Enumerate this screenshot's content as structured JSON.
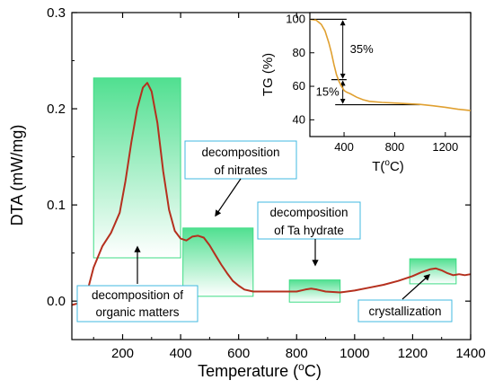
{
  "chart_data": [
    {
      "type": "line",
      "xlabel": "Temperature (",
      "xlabel_sup": "o",
      "xlabel_suffix": "C)",
      "ylabel": "DTA (mW/mg)",
      "xlim": [
        25,
        1400
      ],
      "ylim": [
        -0.04,
        0.3
      ],
      "xticks": [
        200,
        400,
        600,
        800,
        1000,
        1200,
        1400
      ],
      "yticks": [
        0.0,
        0.1,
        0.2,
        0.3
      ],
      "xtick_labels": [
        "200",
        "400",
        "600",
        "800",
        "1000",
        "1200",
        "1400"
      ],
      "ytick_labels": [
        "0.0",
        "0.1",
        "0.2",
        "0.3"
      ],
      "grid": false,
      "line_color": "#b5301e",
      "series": [
        {
          "x": [
            25,
            50,
            80,
            100,
            130,
            160,
            190,
            210,
            230,
            250,
            270,
            285,
            300,
            320,
            340,
            360,
            380,
            400,
            420,
            440,
            460,
            480,
            500,
            520,
            540,
            560,
            580,
            600,
            620,
            650,
            700,
            750,
            800,
            830,
            850,
            870,
            900,
            950,
            1000,
            1050,
            1100,
            1150,
            1200,
            1230,
            1260,
            1280,
            1300,
            1320,
            1340,
            1360,
            1380,
            1400
          ],
          "y": [
            -0.004,
            -0.002,
            0.012,
            0.035,
            0.057,
            0.071,
            0.092,
            0.125,
            0.165,
            0.2,
            0.222,
            0.227,
            0.218,
            0.185,
            0.135,
            0.095,
            0.073,
            0.065,
            0.063,
            0.067,
            0.068,
            0.066,
            0.058,
            0.048,
            0.038,
            0.029,
            0.021,
            0.016,
            0.012,
            0.01,
            0.01,
            0.01,
            0.01,
            0.012,
            0.013,
            0.012,
            0.01,
            0.009,
            0.011,
            0.014,
            0.017,
            0.021,
            0.026,
            0.03,
            0.033,
            0.034,
            0.032,
            0.029,
            0.027,
            0.028,
            0.027,
            0.028
          ]
        }
      ],
      "regions": [
        {
          "x": [
            100,
            400
          ],
          "y": [
            0.045,
            0.232
          ],
          "label": "decomposition of organic matters"
        },
        {
          "x": [
            408,
            650
          ],
          "y": [
            0.005,
            0.076
          ],
          "label": "decomposition of nitrates"
        },
        {
          "x": [
            775,
            950
          ],
          "y": [
            -0.001,
            0.022
          ],
          "label": "decomposition of Ta hydrate"
        },
        {
          "x": [
            1190,
            1350
          ],
          "y": [
            0.018,
            0.044
          ],
          "label": "crystallization"
        }
      ],
      "region_color": "#3ddc84",
      "box_color": "#40b8e0",
      "annotations": [
        {
          "lines": [
            "decomposition of",
            "organic matters"
          ]
        },
        {
          "lines": [
            "decomposition",
            "of nitrates"
          ]
        },
        {
          "lines": [
            "decomposition",
            "of Ta hydrate"
          ]
        },
        {
          "lines": [
            "crystallization"
          ]
        }
      ]
    },
    {
      "type": "line",
      "inset": true,
      "xlabel": "T(",
      "xlabel_sup": "o",
      "xlabel_suffix": "C)",
      "ylabel": "TG (%)",
      "xlim": [
        130,
        1400
      ],
      "ylim": [
        30,
        104
      ],
      "xticks": [
        400,
        800,
        1200
      ],
      "yticks": [
        40,
        60,
        80,
        100
      ],
      "xtick_labels": [
        "400",
        "800",
        "1200"
      ],
      "ytick_labels": [
        "40",
        "60",
        "80",
        "100"
      ],
      "line_color": "#e0a030",
      "series": [
        {
          "x": [
            130,
            180,
            220,
            250,
            280,
            300,
            320,
            340,
            360,
            380,
            400,
            420,
            450,
            500,
            550,
            600,
            700,
            800,
            900,
            1000,
            1100,
            1200,
            1300,
            1400
          ],
          "y": [
            100,
            99.5,
            97,
            93,
            86,
            80,
            73,
            67,
            63,
            60,
            57.5,
            56.5,
            55.5,
            53.5,
            52,
            51,
            50.4,
            50,
            49.6,
            49.2,
            48.4,
            47.5,
            46.3,
            45.5
          ]
        }
      ],
      "reference_lines": [
        100,
        64,
        49
      ],
      "reference_x": [
        130,
        1000
      ],
      "annotations": [
        "35%",
        "15%"
      ]
    }
  ]
}
